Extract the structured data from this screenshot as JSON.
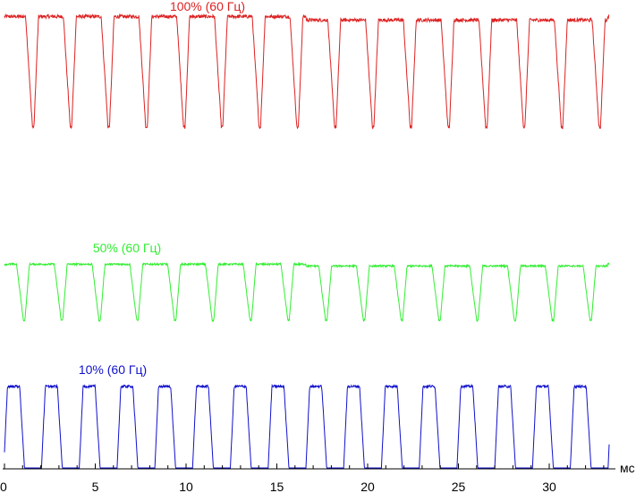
{
  "chart_data": {
    "type": "line",
    "xunit": "мс",
    "xlim": [
      0,
      34.5
    ],
    "xticks": [
      0,
      5,
      10,
      15,
      20,
      25,
      30
    ],
    "grid": false,
    "legend": "none",
    "series": [
      {
        "name": "100% (60 Гц)",
        "color": "#dd2222",
        "period_ms": 2.08,
        "first_peak_ms": 1.0,
        "level_high": 0.96,
        "level_low": 0.14
      },
      {
        "name": "50% (60 Гц)",
        "color": "#33ee33",
        "period_ms": 2.08,
        "first_peak_ms": 0.5,
        "level_high": 0.55,
        "level_low": 0.14
      },
      {
        "name": "10% (60 Гц)",
        "color": "#1111cc",
        "period_ms": 2.08,
        "first_peak_ms": 1.0,
        "level_high": 0.2,
        "level_low": 0.0
      }
    ]
  }
}
